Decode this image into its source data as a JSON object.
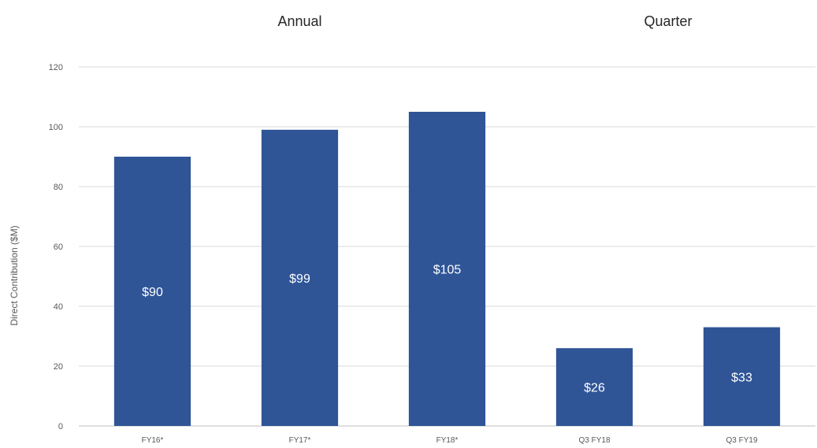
{
  "chart_data": {
    "type": "bar",
    "title": "",
    "group_titles": [
      "Annual",
      "Quarter"
    ],
    "group_members": [
      [
        0,
        1,
        2
      ],
      [
        3,
        4
      ]
    ],
    "categories": [
      "FY16*",
      "FY17*",
      "FY18*",
      "Q3 FY18",
      "Q3 FY19"
    ],
    "values": [
      90,
      99,
      105,
      26,
      33
    ],
    "data_labels": [
      "$90",
      "$99",
      "$105",
      "$26",
      "$33"
    ],
    "xlabel": "",
    "ylabel": "Direct Contribution ($M)",
    "ylim": [
      0,
      120
    ],
    "yticks": [
      0,
      20,
      40,
      60,
      80,
      100,
      120
    ],
    "grid": true,
    "legend": "none",
    "bar_color": "#2f5597"
  }
}
